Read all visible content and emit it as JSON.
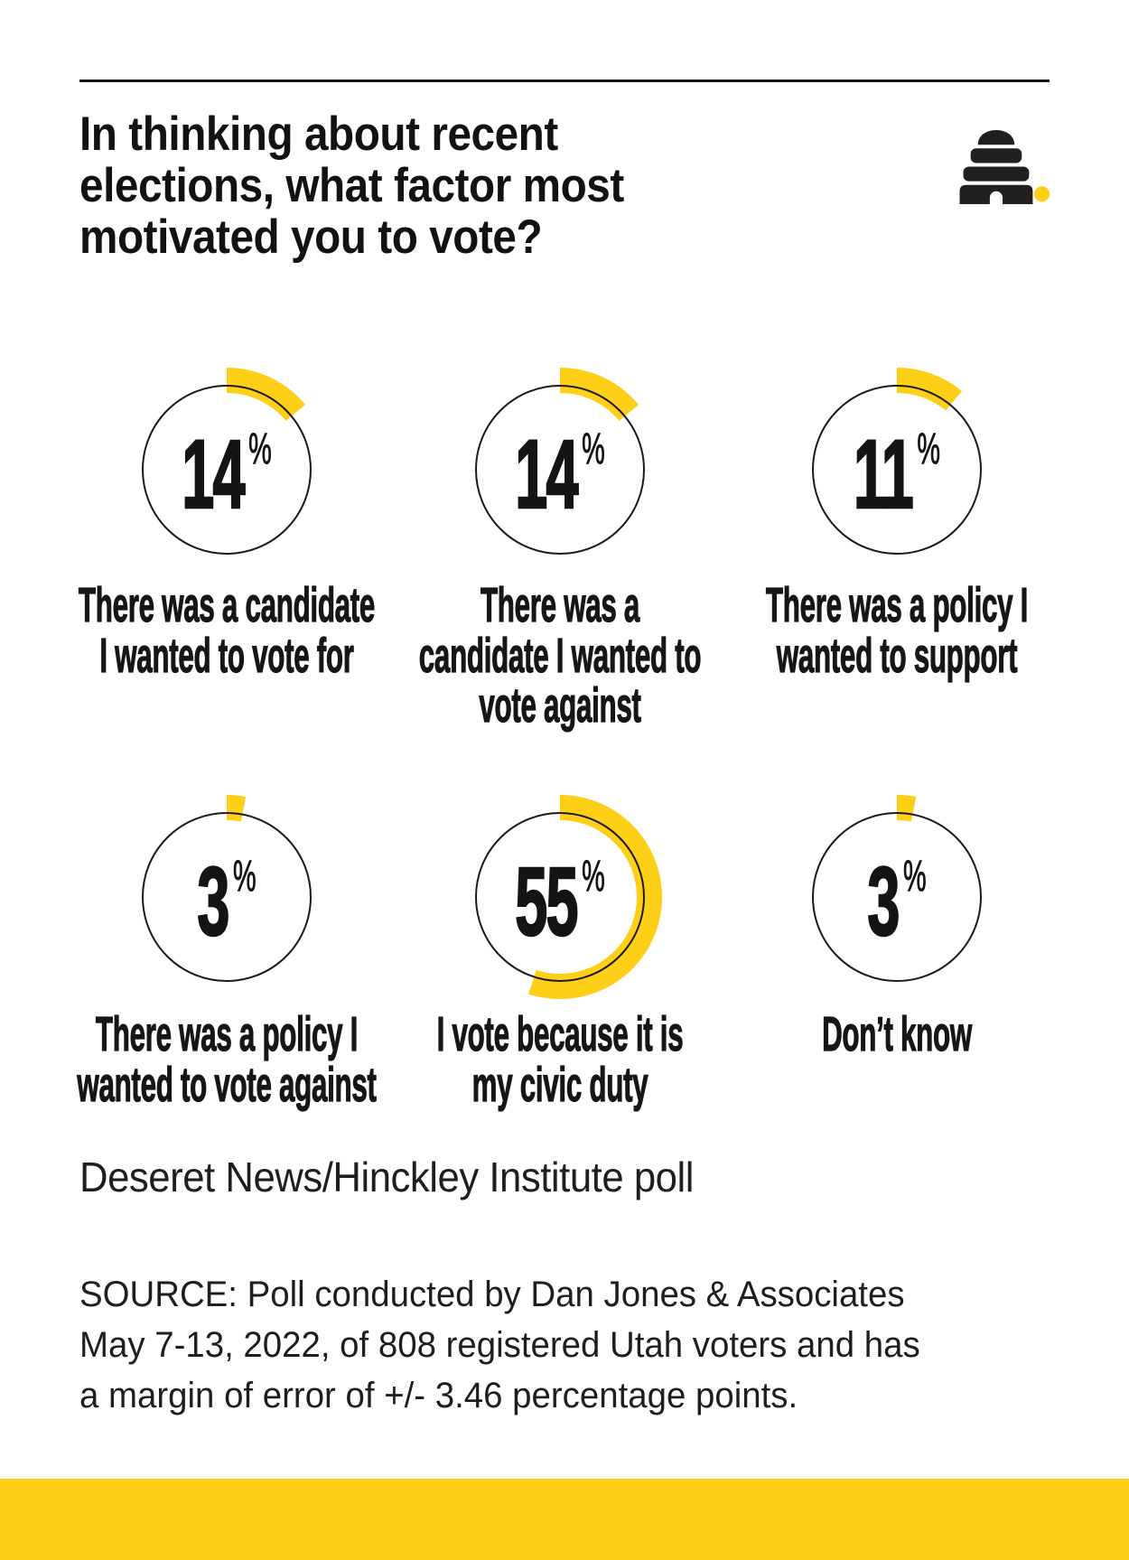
{
  "header": {
    "title": "In thinking about recent\nelections, what factor most\nmotivated you to vote?",
    "logo_name": "deseret-news-beehive-logo"
  },
  "colors": {
    "accent_yellow": "#FDCF16",
    "ink": "#1A1A1A"
  },
  "chart_data": {
    "type": "donut-gauges",
    "title": "In thinking about recent elections, what factor most motivated you to vote?",
    "unit": "%",
    "value_range": [
      0,
      100
    ],
    "arc_start": "12 o'clock, clockwise",
    "gauges": [
      {
        "label": "There was a candidate\nI wanted to vote for",
        "value": 14
      },
      {
        "label": "There was a\ncandidate I wanted to\nvote against",
        "value": 14
      },
      {
        "label": "There was a policy I\nwanted to support",
        "value": 11
      },
      {
        "label": "There was a policy I\nwanted to vote against",
        "value": 3
      },
      {
        "label": "I vote because it is\nmy civic duty",
        "value": 55
      },
      {
        "label": "Don’t know",
        "value": 3
      }
    ]
  },
  "footer": {
    "attribution": "Deseret News/Hinckley Institute poll",
    "source": "SOURCE: Poll conducted by Dan Jones & Associates\nMay 7-13, 2022, of 808 registered Utah voters and has\na margin of error of +/- 3.46 percentage points."
  }
}
